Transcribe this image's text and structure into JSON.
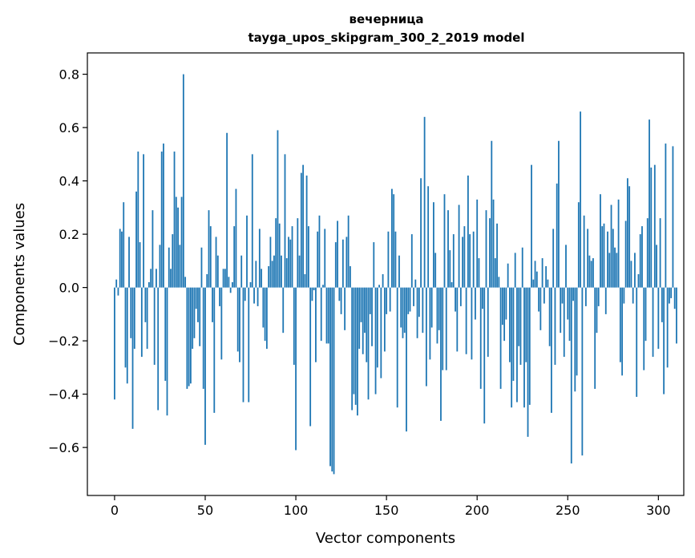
{
  "chart_data": {
    "type": "bar",
    "title": "вечерница",
    "subtitle": "tayga_upos_skipgram_300_2_2019 model",
    "xlabel": "Vector components",
    "ylabel": "Components values",
    "xlim": [
      -15,
      314
    ],
    "ylim": [
      -0.78,
      0.88
    ],
    "xticks": [
      0,
      50,
      100,
      150,
      200,
      250,
      300
    ],
    "xtick_labels": [
      "0",
      "50",
      "100",
      "150",
      "200",
      "250",
      "300"
    ],
    "yticks": [
      -0.6,
      -0.4,
      -0.2,
      0.0,
      0.2,
      0.4,
      0.6,
      0.8
    ],
    "ytick_labels": [
      "−0.6",
      "−0.4",
      "−0.2",
      "0.0",
      "0.2",
      "0.4",
      "0.6",
      "0.8"
    ],
    "grid": false,
    "bar_color": "#1f77b4",
    "values": [
      -0.42,
      0.03,
      -0.03,
      0.22,
      0.21,
      0.32,
      -0.3,
      -0.36,
      0.19,
      -0.19,
      -0.53,
      -0.23,
      0.36,
      0.51,
      0.17,
      -0.26,
      0.5,
      -0.13,
      -0.23,
      0.02,
      0.07,
      0.29,
      -0.29,
      0.07,
      -0.46,
      0.16,
      0.51,
      0.54,
      -0.35,
      -0.48,
      0.15,
      0.07,
      0.2,
      0.51,
      0.34,
      0.3,
      0.16,
      0.34,
      0.8,
      0.04,
      -0.38,
      -0.37,
      -0.36,
      -0.23,
      -0.19,
      -0.08,
      -0.13,
      -0.22,
      0.15,
      -0.38,
      -0.59,
      0.05,
      0.29,
      0.23,
      -0.13,
      -0.47,
      0.19,
      0.12,
      -0.07,
      -0.27,
      0.07,
      0.07,
      0.58,
      0.04,
      -0.02,
      0.02,
      0.23,
      0.37,
      -0.24,
      -0.28,
      0.12,
      -0.43,
      -0.05,
      0.27,
      -0.43,
      0.02,
      0.5,
      -0.06,
      0.1,
      -0.07,
      0.22,
      0.07,
      -0.15,
      -0.2,
      -0.23,
      0.08,
      0.19,
      0.1,
      0.12,
      0.26,
      0.59,
      0.24,
      0.12,
      -0.17,
      0.5,
      0.11,
      0.19,
      0.18,
      0.23,
      -0.29,
      -0.61,
      0.26,
      0.12,
      0.43,
      0.46,
      0.05,
      0.42,
      0.23,
      -0.52,
      -0.05,
      -0.01,
      -0.28,
      0.21,
      0.27,
      -0.2,
      0.01,
      0.22,
      -0.21,
      -0.21,
      -0.67,
      -0.69,
      -0.7,
      0.17,
      0.25,
      -0.05,
      -0.1,
      0.18,
      -0.16,
      0.19,
      0.27,
      0.08,
      -0.46,
      -0.4,
      -0.44,
      -0.48,
      -0.23,
      -0.13,
      -0.25,
      -0.17,
      -0.28,
      -0.42,
      -0.1,
      -0.22,
      0.17,
      -0.4,
      -0.3,
      0.01,
      -0.34,
      0.05,
      -0.24,
      -0.1,
      0.21,
      -0.09,
      0.37,
      0.35,
      0.21,
      -0.45,
      0.12,
      -0.15,
      -0.19,
      -0.17,
      -0.54,
      -0.1,
      -0.09,
      0.2,
      -0.07,
      0.03,
      -0.19,
      -0.11,
      0.41,
      -0.17,
      0.64,
      -0.37,
      0.38,
      -0.27,
      -0.15,
      0.32,
      0.13,
      -0.21,
      -0.16,
      -0.5,
      -0.31,
      0.35,
      -0.31,
      0.29,
      0.14,
      0.02,
      0.2,
      -0.09,
      -0.24,
      0.31,
      -0.07,
      0.19,
      0.23,
      -0.25,
      0.42,
      0.2,
      -0.27,
      0.21,
      -0.12,
      0.33,
      0.11,
      -0.38,
      -0.08,
      -0.51,
      0.29,
      -0.26,
      0.26,
      0.55,
      0.33,
      0.11,
      0.24,
      0.04,
      -0.38,
      -0.14,
      -0.2,
      -0.12,
      0.09,
      -0.28,
      -0.45,
      -0.35,
      0.13,
      -0.43,
      -0.22,
      -0.29,
      0.15,
      -0.45,
      -0.28,
      -0.56,
      -0.44,
      0.46,
      0.03,
      0.1,
      0.06,
      -0.09,
      -0.16,
      0.11,
      -0.06,
      0.08,
      0.03,
      -0.22,
      -0.47,
      0.22,
      -0.29,
      0.39,
      0.55,
      -0.17,
      -0.06,
      -0.26,
      0.16,
      -0.12,
      -0.2,
      -0.66,
      -0.05,
      -0.39,
      -0.33,
      0.32,
      0.66,
      -0.63,
      0.27,
      -0.07,
      0.22,
      0.12,
      0.1,
      0.11,
      -0.38,
      -0.17,
      -0.07,
      0.35,
      0.23,
      0.24,
      -0.1,
      0.21,
      0.13,
      0.31,
      0.22,
      0.15,
      0.13,
      0.33,
      -0.28,
      -0.33,
      -0.06,
      0.25,
      0.41,
      0.38,
      0.1,
      -0.06,
      0.13,
      -0.41,
      0.05,
      0.2,
      0.23,
      -0.31,
      -0.2,
      0.26,
      0.63,
      0.45,
      -0.26,
      0.46,
      0.16,
      -0.23,
      0.26,
      -0.13,
      -0.4,
      0.54,
      -0.3,
      -0.06,
      -0.04,
      0.53,
      -0.08,
      -0.21
    ]
  }
}
